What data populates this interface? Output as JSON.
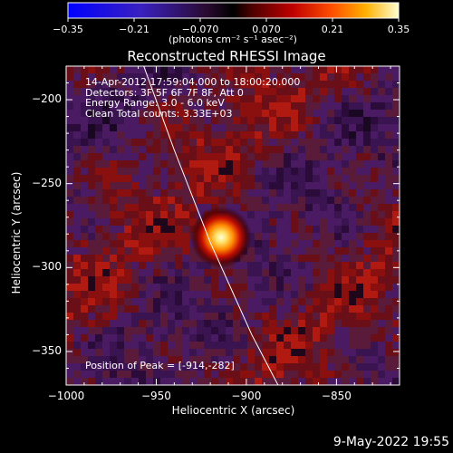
{
  "colorbar": {
    "ticks": [
      "-0.35",
      "-0.21",
      "-0.070",
      "0.070",
      "0.21",
      "0.35"
    ],
    "units": "(photons cm⁻² s⁻¹ asec⁻²)",
    "range": [
      -0.35,
      0.35
    ]
  },
  "chart_data": {
    "type": "heatmap",
    "title": "Reconstructed RHESSI Image",
    "xlabel": "Heliocentric X (arcsec)",
    "ylabel": "Heliocentric Y (arcsec)",
    "xlim": [
      -1000,
      -815
    ],
    "ylim": [
      -370,
      -180
    ],
    "xticks": [
      -1000,
      -950,
      -900,
      -850
    ],
    "yticks": [
      -350,
      -300,
      -250,
      -200
    ],
    "xtick_labels": [
      "−1000",
      "−950",
      "−900",
      "−850"
    ],
    "ytick_labels": [
      "−350",
      "−300",
      "−250",
      "−200"
    ],
    "peak": {
      "x": -914,
      "y": -282,
      "value": 0.35
    },
    "annotations": [
      "14-Apr-2012 17:59:04.000 to 18:00:20.000",
      "Detectors: 3F 5F 6F 7F 8F, Att 0",
      "Energy Range: 3.0 - 6.0 keV",
      "Clean    Total counts: 3.33E+03"
    ],
    "peak_label": "Position of Peak = [-914,-282]"
  },
  "footer": {
    "date": "9-May-2022 19:55"
  }
}
